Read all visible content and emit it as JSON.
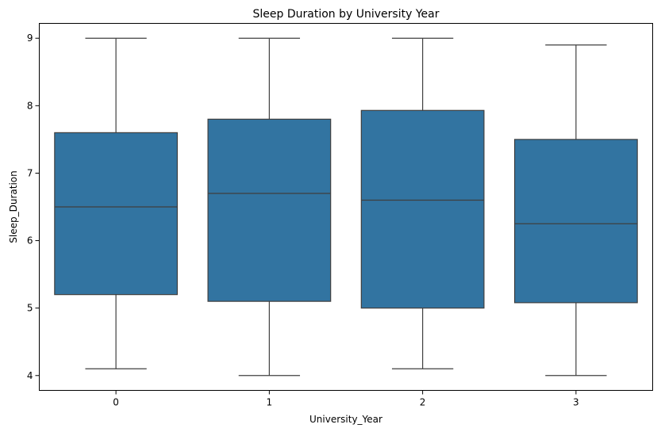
{
  "chart_data": {
    "type": "box",
    "title": "Sleep Duration by University Year",
    "xlabel": "University_Year",
    "ylabel": "Sleep_Duration",
    "categories": [
      "0",
      "1",
      "2",
      "3"
    ],
    "boxes": [
      {
        "category": "0",
        "whisker_low": 4.1,
        "q1": 5.2,
        "median": 6.5,
        "q3": 7.6,
        "whisker_high": 9.0
      },
      {
        "category": "1",
        "whisker_low": 4.0,
        "q1": 5.1,
        "median": 6.7,
        "q3": 7.8,
        "whisker_high": 9.0
      },
      {
        "category": "2",
        "whisker_low": 4.1,
        "q1": 5.0,
        "median": 6.6,
        "q3": 7.93,
        "whisker_high": 9.0
      },
      {
        "category": "3",
        "whisker_low": 4.0,
        "q1": 5.08,
        "median": 6.25,
        "q3": 7.5,
        "whisker_high": 8.9
      }
    ],
    "yticks": [
      "4",
      "5",
      "6",
      "7",
      "8",
      "9"
    ],
    "ylim": [
      3.78,
      9.22
    ],
    "grid": false,
    "colors": {
      "box_fill": "#3274a1",
      "line": "#3f3f3f",
      "axis": "#000000"
    }
  }
}
